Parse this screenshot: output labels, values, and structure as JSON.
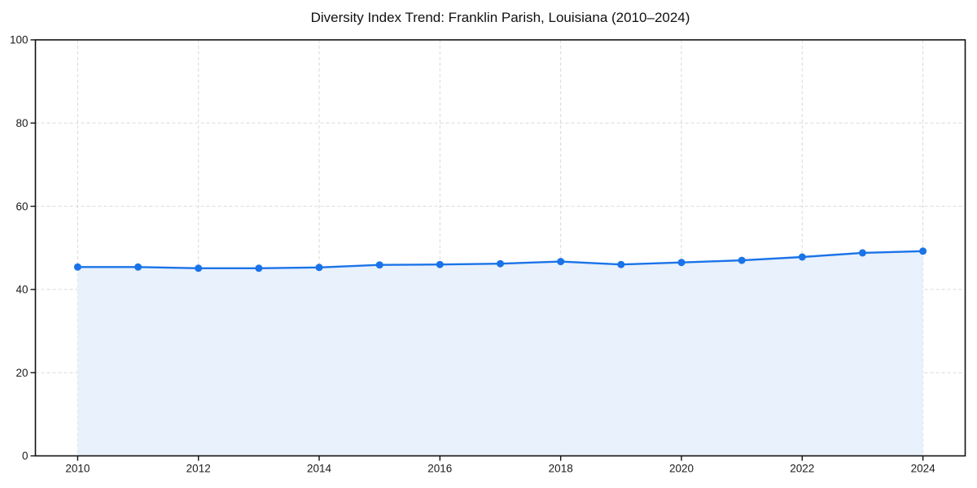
{
  "chart_data": {
    "type": "line",
    "title": "Diversity Index Trend: Franklin Parish, Louisiana (2010–2024)",
    "x": [
      2010,
      2011,
      2012,
      2013,
      2014,
      2015,
      2016,
      2017,
      2018,
      2019,
      2020,
      2021,
      2022,
      2023,
      2024
    ],
    "series": [
      {
        "name": "Diversity Index",
        "values": [
          45.4,
          45.4,
          45.1,
          45.1,
          45.3,
          45.9,
          46.0,
          46.2,
          46.7,
          46.0,
          46.5,
          47.0,
          47.8,
          48.8,
          49.2
        ]
      }
    ],
    "xlabel": "",
    "ylabel": "",
    "xlim": [
      2009.3,
      2024.7
    ],
    "ylim": [
      0,
      100
    ],
    "xticks": [
      2010,
      2012,
      2014,
      2016,
      2018,
      2020,
      2022,
      2024
    ],
    "yticks": [
      0,
      20,
      40,
      60,
      80,
      100
    ],
    "grid": true,
    "grid_style": "dashed",
    "legend": "none",
    "marker": "circle",
    "area_fill": true,
    "colors": {
      "line": "#1a73e8",
      "marker": "#1a73e8",
      "fill": "#e8f1fc",
      "grid": "#d9d9d9",
      "axis": "#111111",
      "text": "#1a1a1a",
      "title": "#111111"
    }
  }
}
